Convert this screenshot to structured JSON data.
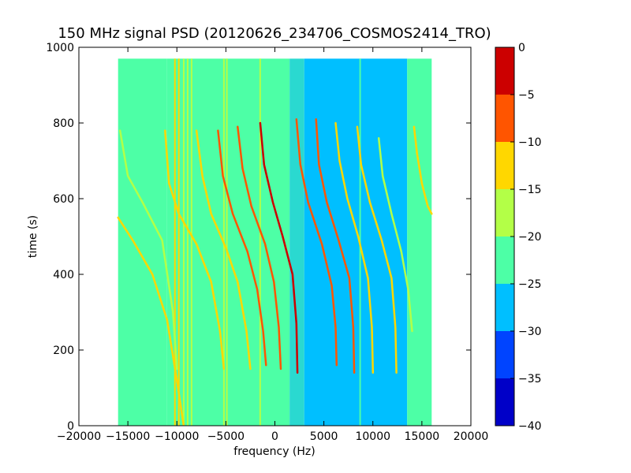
{
  "chart_data": {
    "type": "heatmap",
    "title": "150 MHz signal PSD (20120626_234706_COSMOS2414_TRO)",
    "xlabel": "frequency (Hz)",
    "ylabel": "time (s)",
    "xlim": [
      -20000,
      20000
    ],
    "ylim": [
      0,
      1000
    ],
    "xticks": [
      -20000,
      -15000,
      -10000,
      -5000,
      0,
      5000,
      10000,
      15000,
      20000
    ],
    "xtick_labels": [
      "−20000",
      "−15000",
      "−10000",
      "−5000",
      "0",
      "5000",
      "10000",
      "15000",
      "20000"
    ],
    "yticks": [
      0,
      200,
      400,
      600,
      800,
      1000
    ],
    "ytick_labels": [
      "0",
      "200",
      "400",
      "600",
      "800",
      "1000"
    ],
    "data_extent": {
      "x": [
        -16000,
        16000
      ],
      "t": [
        0,
        970
      ]
    },
    "colorbar": {
      "ticks": [
        0,
        -5,
        -10,
        -15,
        -20,
        -25,
        -30,
        -35,
        -40
      ],
      "tick_labels": [
        "0",
        "−5",
        "−10",
        "−15",
        "−20",
        "−25",
        "−30",
        "−35",
        "−40"
      ],
      "levels": [
        {
          "min": -5,
          "max": 0,
          "color": "#cc0000"
        },
        {
          "min": -10,
          "max": -5,
          "color": "#ff5500"
        },
        {
          "min": -15,
          "max": -10,
          "color": "#ffd700"
        },
        {
          "min": -20,
          "max": -15,
          "color": "#b3ff47"
        },
        {
          "min": -25,
          "max": -20,
          "color": "#4dffa6"
        },
        {
          "min": -30,
          "max": -25,
          "color": "#00bfff"
        },
        {
          "min": -35,
          "max": -30,
          "color": "#0044ff"
        },
        {
          "min": -40,
          "max": -35,
          "color": "#0000c8"
        }
      ]
    },
    "background_regions": [
      {
        "x": [
          -16000,
          -11000
        ],
        "color": "#4dffa6"
      },
      {
        "x": [
          -11000,
          1500
        ],
        "color": "#4dffa6"
      },
      {
        "x": [
          1500,
          3000
        ],
        "color": "#2ad9d0"
      },
      {
        "x": [
          3000,
          13500
        ],
        "color": "#00bfff"
      },
      {
        "x": [
          13500,
          16000
        ],
        "color": "#4dffa6"
      }
    ],
    "vertical_lines": [
      {
        "x": -10200,
        "color": "#ffd700"
      },
      {
        "x": -9800,
        "color": "#ffd700"
      },
      {
        "x": -9300,
        "color": "#b3ff47"
      },
      {
        "x": -8900,
        "color": "#b3ff47"
      },
      {
        "x": -8500,
        "color": "#b3ff47"
      },
      {
        "x": -5200,
        "color": "#b3ff47"
      },
      {
        "x": -4900,
        "color": "#b3ff47"
      },
      {
        "x": -1500,
        "color": "#b3ff47"
      },
      {
        "x": 8700,
        "color": "#4dffa6"
      }
    ],
    "tracks": [
      {
        "points": [
          [
            -16000,
            550
          ],
          [
            -14500,
            490
          ],
          [
            -12500,
            400
          ],
          [
            -11000,
            280
          ],
          [
            -10000,
            120
          ],
          [
            -9300,
            0
          ]
        ],
        "color": "#ffd700"
      },
      {
        "points": [
          [
            -15800,
            780
          ],
          [
            -15000,
            660
          ],
          [
            -13500,
            590
          ],
          [
            -11500,
            490
          ],
          [
            -10400,
            300
          ],
          [
            -10000,
            150
          ]
        ],
        "color": "#b3ff47"
      },
      {
        "points": [
          [
            -11200,
            780
          ],
          [
            -10800,
            640
          ],
          [
            -9800,
            560
          ],
          [
            -8000,
            480
          ],
          [
            -6500,
            380
          ],
          [
            -5600,
            250
          ],
          [
            -5200,
            150
          ]
        ],
        "color": "#ffd700"
      },
      {
        "points": [
          [
            -8000,
            780
          ],
          [
            -7400,
            660
          ],
          [
            -6500,
            560
          ],
          [
            -5000,
            470
          ],
          [
            -3800,
            380
          ],
          [
            -2900,
            250
          ],
          [
            -2500,
            150
          ]
        ],
        "color": "#ffd700"
      },
      {
        "points": [
          [
            -5800,
            780
          ],
          [
            -5300,
            660
          ],
          [
            -4300,
            560
          ],
          [
            -2800,
            460
          ],
          [
            -1800,
            360
          ],
          [
            -1200,
            250
          ],
          [
            -900,
            160
          ]
        ],
        "color": "#ff5500"
      },
      {
        "points": [
          [
            -3800,
            790
          ],
          [
            -3300,
            680
          ],
          [
            -2400,
            580
          ],
          [
            -1000,
            480
          ],
          [
            -100,
            380
          ],
          [
            400,
            260
          ],
          [
            600,
            150
          ]
        ],
        "color": "#ff5500"
      },
      {
        "points": [
          [
            -1500,
            800
          ],
          [
            -1100,
            690
          ],
          [
            -200,
            590
          ],
          [
            800,
            500
          ],
          [
            1800,
            400
          ],
          [
            2200,
            270
          ],
          [
            2300,
            140
          ]
        ],
        "color": "#cc0000"
      },
      {
        "points": [
          [
            2200,
            810
          ],
          [
            2600,
            690
          ],
          [
            3400,
            590
          ],
          [
            4800,
            480
          ],
          [
            5800,
            370
          ],
          [
            6200,
            260
          ],
          [
            6300,
            160
          ]
        ],
        "color": "#ff5500"
      },
      {
        "points": [
          [
            4200,
            810
          ],
          [
            4500,
            690
          ],
          [
            5300,
            590
          ],
          [
            6500,
            490
          ],
          [
            7600,
            390
          ],
          [
            8000,
            260
          ],
          [
            8100,
            140
          ]
        ],
        "color": "#ff5500"
      },
      {
        "points": [
          [
            6200,
            800
          ],
          [
            6600,
            700
          ],
          [
            7400,
            600
          ],
          [
            8500,
            500
          ],
          [
            9500,
            390
          ],
          [
            9900,
            260
          ],
          [
            10000,
            140
          ]
        ],
        "color": "#ffd700"
      },
      {
        "points": [
          [
            8400,
            790
          ],
          [
            8800,
            690
          ],
          [
            9700,
            590
          ],
          [
            10900,
            490
          ],
          [
            11900,
            390
          ],
          [
            12300,
            260
          ],
          [
            12400,
            140
          ]
        ],
        "color": "#ffd700"
      },
      {
        "points": [
          [
            10600,
            760
          ],
          [
            11000,
            660
          ],
          [
            11900,
            560
          ],
          [
            12900,
            460
          ],
          [
            13600,
            360
          ],
          [
            14000,
            250
          ]
        ],
        "color": "#b3ff47"
      },
      {
        "points": [
          [
            14200,
            790
          ],
          [
            14500,
            720
          ],
          [
            15000,
            640
          ],
          [
            15600,
            580
          ],
          [
            16000,
            560
          ]
        ],
        "color": "#ffd700"
      }
    ]
  }
}
